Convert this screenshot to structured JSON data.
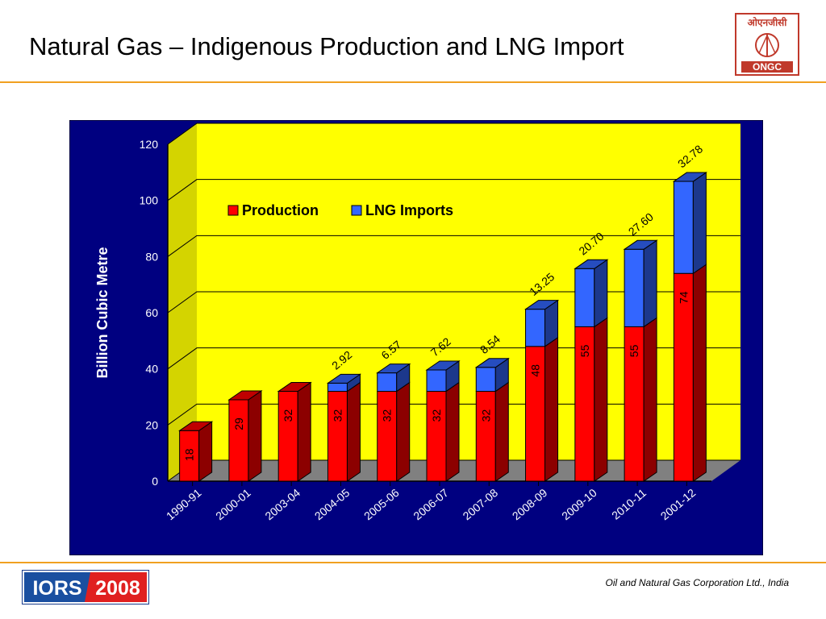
{
  "slide": {
    "title": "Natural Gas – Indigenous Production and LNG Import",
    "footer": "Oil and Natural Gas Corporation Ltd., India",
    "logo_top": "ओएनजीसी",
    "logo_bottom": "ONGC",
    "iors_left": "IORS",
    "iors_right": "2008"
  },
  "colors": {
    "production": "#ff0000",
    "lng_imports": "#3366ff",
    "plot_background": "#ffff00",
    "chart_background": "#000080",
    "floor": "#808080",
    "accent_rule": "#f0a020",
    "logo": "#c0392b"
  },
  "chart_data": {
    "type": "bar",
    "stacked": true,
    "three_d": true,
    "ylabel": "Billion Cubic Metre",
    "ylim": [
      0,
      120
    ],
    "yticks": [
      0,
      20,
      40,
      60,
      80,
      100,
      120
    ],
    "grid": true,
    "legend_position": "top-left",
    "categories": [
      "1990-91",
      "2000-01",
      "2003-04",
      "2004-05",
      "2005-06",
      "2006-07",
      "2007-08",
      "2008-09",
      "2009-10",
      "2010-11",
      "2001-12"
    ],
    "series": [
      {
        "name": "Production",
        "values": [
          18,
          29,
          32,
          32,
          32,
          32,
          32,
          48,
          55,
          55,
          74
        ],
        "labels": [
          "18",
          "29",
          "32",
          "32",
          "32",
          "32",
          "32",
          "48",
          "55",
          "55",
          "74"
        ]
      },
      {
        "name": "LNG Imports",
        "values": [
          0,
          0,
          0,
          2.92,
          6.57,
          7.62,
          8.54,
          13.25,
          20.7,
          27.6,
          32.78
        ],
        "labels": [
          "",
          "",
          "",
          "2.92",
          "6.57",
          "7.62",
          "8.54",
          "13.25",
          "20.70",
          "27.60",
          "32.78"
        ]
      }
    ]
  }
}
